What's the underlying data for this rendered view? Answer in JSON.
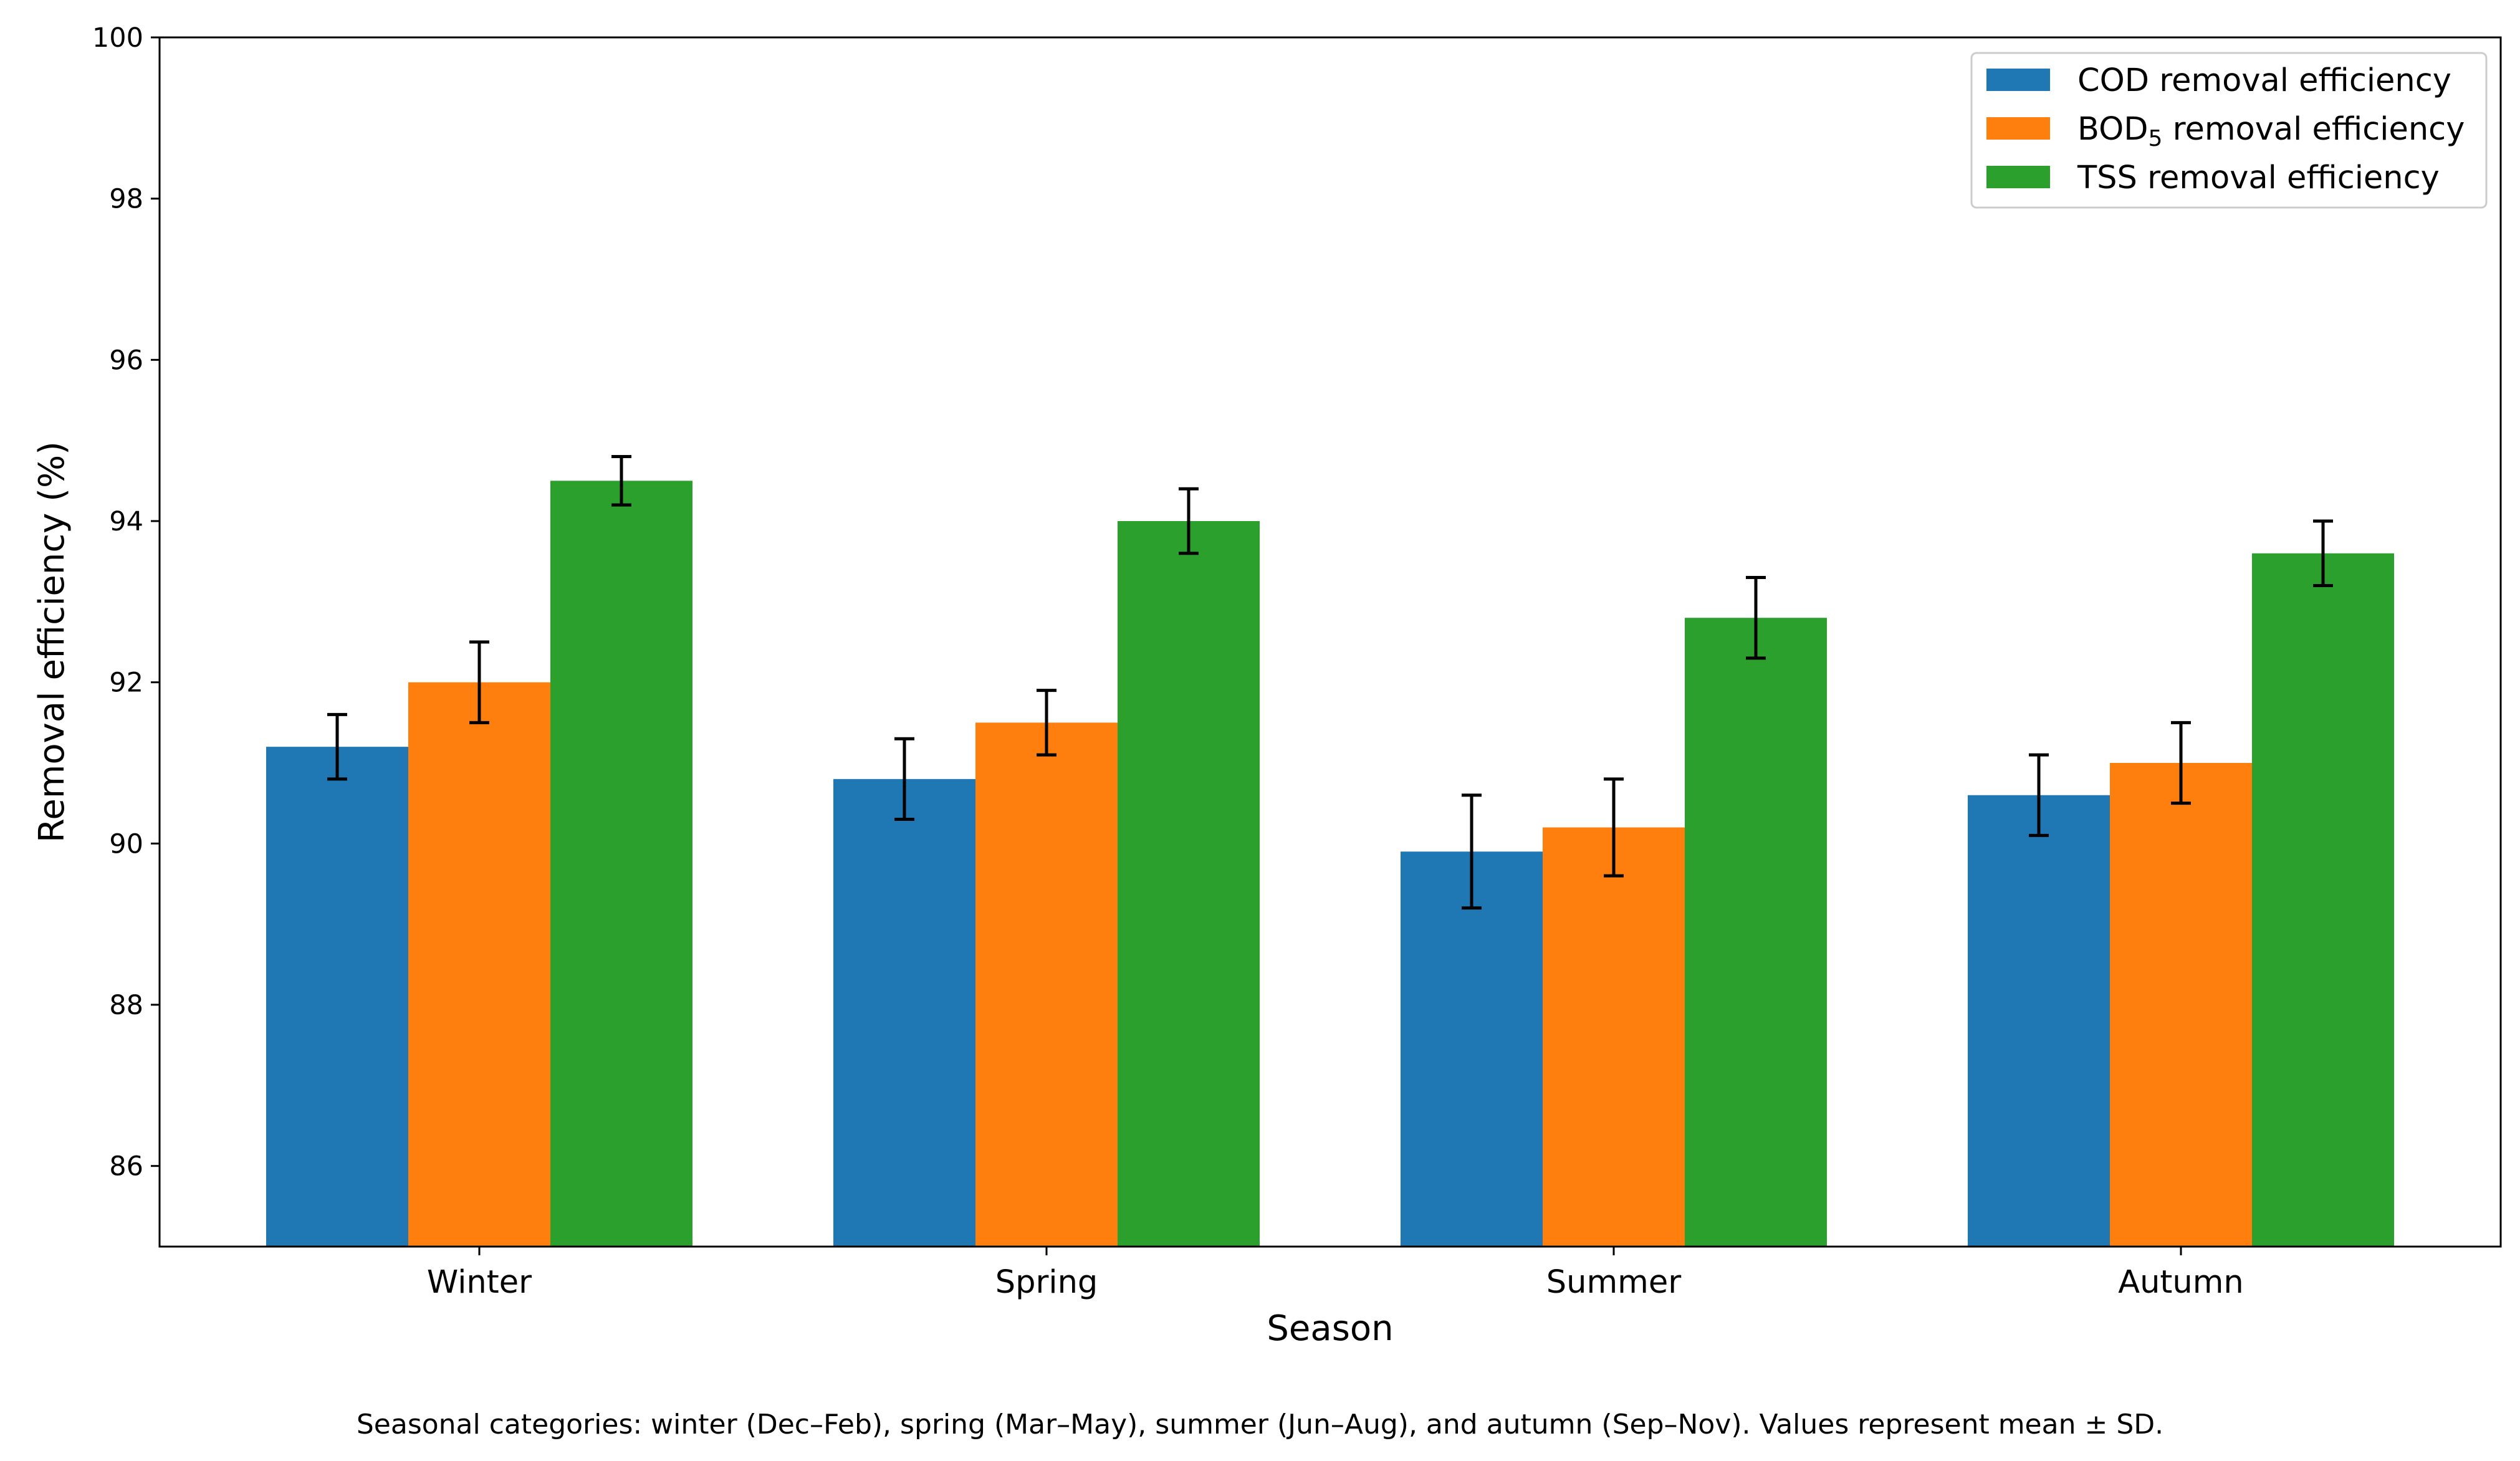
{
  "chart_data": {
    "type": "bar",
    "xlabel": "Season",
    "ylabel": "Removal efficiency (%)",
    "categories": [
      "Winter",
      "Spring",
      "Summer",
      "Autumn"
    ],
    "ylim": [
      85,
      100
    ],
    "yticks": [
      86,
      88,
      90,
      92,
      94,
      96,
      98,
      100
    ],
    "grid": false,
    "legend_position": "top-right",
    "series": [
      {
        "name": "COD removal efficiency",
        "name_main": "COD removal efficiency",
        "name_sub": "",
        "name_tail": "",
        "color": "#1f77b4",
        "values": [
          91.2,
          90.8,
          89.9,
          90.6
        ],
        "errors": [
          0.4,
          0.5,
          0.7,
          0.5
        ]
      },
      {
        "name": "BOD5 removal efficiency",
        "name_main": "BOD",
        "name_sub": "5",
        "name_tail": " removal efficiency",
        "color": "#ff7f0e",
        "values": [
          92.0,
          91.5,
          90.2,
          91.0
        ],
        "errors": [
          0.5,
          0.4,
          0.6,
          0.5
        ]
      },
      {
        "name": "TSS removal efficiency",
        "name_main": "TSS removal efficiency",
        "name_sub": "",
        "name_tail": "",
        "color": "#2ca02c",
        "values": [
          94.5,
          94.0,
          92.8,
          93.6
        ],
        "errors": [
          0.3,
          0.4,
          0.5,
          0.4
        ]
      }
    ]
  },
  "caption": "Seasonal categories: winter (Dec–Feb), spring (Mar–May), summer (Jun–Aug), and autumn (Sep–Nov). Values represent mean ± SD."
}
